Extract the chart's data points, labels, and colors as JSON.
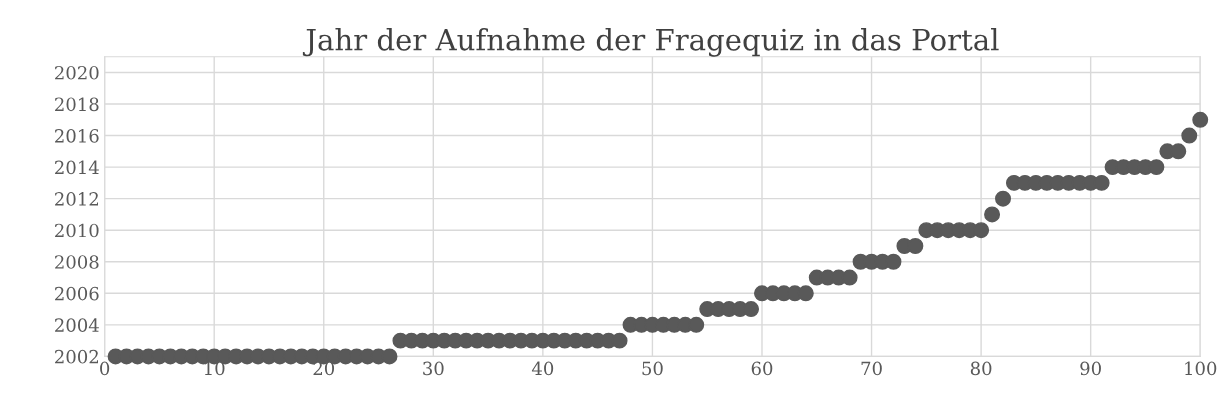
{
  "chart_data": {
    "type": "scatter",
    "title": "Jahr der Aufnahme der Fragequiz in das Portal",
    "x": [
      1,
      2,
      3,
      4,
      5,
      6,
      7,
      8,
      9,
      10,
      11,
      12,
      13,
      14,
      15,
      16,
      17,
      18,
      19,
      20,
      21,
      22,
      23,
      24,
      25,
      26,
      27,
      28,
      29,
      30,
      31,
      32,
      33,
      34,
      35,
      36,
      37,
      38,
      39,
      40,
      41,
      42,
      43,
      44,
      45,
      46,
      47,
      48,
      49,
      50,
      51,
      52,
      53,
      54,
      55,
      56,
      57,
      58,
      59,
      60,
      61,
      62,
      63,
      64,
      65,
      66,
      67,
      68,
      69,
      70,
      71,
      72,
      73,
      74,
      75,
      76,
      77,
      78,
      79,
      80,
      81,
      82,
      83,
      84,
      85,
      86,
      87,
      88,
      89,
      90,
      91,
      92,
      93,
      94,
      95,
      96,
      97,
      98,
      99,
      100
    ],
    "values": [
      2002,
      2002,
      2002,
      2002,
      2002,
      2002,
      2002,
      2002,
      2002,
      2002,
      2002,
      2002,
      2002,
      2002,
      2002,
      2002,
      2002,
      2002,
      2002,
      2002,
      2002,
      2002,
      2002,
      2002,
      2002,
      2002,
      2003,
      2003,
      2003,
      2003,
      2003,
      2003,
      2003,
      2003,
      2003,
      2003,
      2003,
      2003,
      2003,
      2003,
      2003,
      2003,
      2003,
      2003,
      2003,
      2003,
      2003,
      2004,
      2004,
      2004,
      2004,
      2004,
      2004,
      2004,
      2005,
      2005,
      2005,
      2005,
      2005,
      2006,
      2006,
      2006,
      2006,
      2006,
      2007,
      2007,
      2007,
      2007,
      2008,
      2008,
      2008,
      2008,
      2009,
      2009,
      2010,
      2010,
      2010,
      2010,
      2010,
      2010,
      2011,
      2012,
      2013,
      2013,
      2013,
      2013,
      2013,
      2013,
      2013,
      2013,
      2013,
      2014,
      2014,
      2014,
      2014,
      2014,
      2015,
      2015,
      2016,
      2017
    ],
    "color": "#595959",
    "marker": "circle",
    "grid": true,
    "xlim": [
      0,
      100
    ],
    "xticks": [
      0,
      10,
      20,
      30,
      40,
      50,
      60,
      70,
      80,
      90,
      100
    ],
    "ylim": [
      2002,
      2021
    ],
    "yticks": [
      2002,
      2004,
      2006,
      2008,
      2010,
      2012,
      2014,
      2016,
      2018,
      2020
    ]
  }
}
